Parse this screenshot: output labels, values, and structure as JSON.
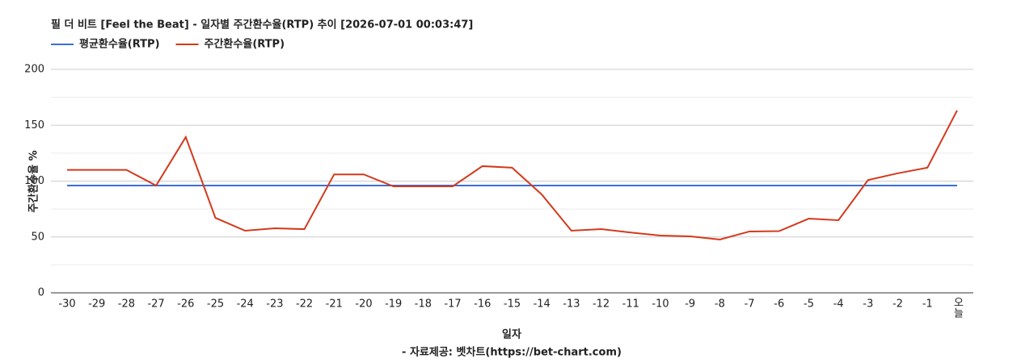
{
  "chart_data": {
    "type": "line",
    "title": "필 더 비트 [Feel the Beat] - 일자별 주간환수율(RTP) 추이 [2026-07-01 00:03:47]",
    "x_label": "일자",
    "y_label": "주간환수율 %",
    "footer": "- 자료제공: 벳차트(https://bet-chart.com)",
    "categories": [
      "-30",
      "-29",
      "-28",
      "-27",
      "-26",
      "-25",
      "-24",
      "-23",
      "-22",
      "-21",
      "-20",
      "-19",
      "-18",
      "-17",
      "-16",
      "-15",
      "-14",
      "-13",
      "-12",
      "-11",
      "-10",
      "-9",
      "-8",
      "-7",
      "-6",
      "-5",
      "-4",
      "-3",
      "-2",
      "-1",
      "오늘"
    ],
    "series": [
      {
        "name": "평균환수율(RTP)",
        "color": "#3b6fd4",
        "values": [
          96,
          96,
          96,
          96,
          96,
          96,
          96,
          96,
          96,
          96,
          96,
          96,
          96,
          96,
          96,
          96,
          96,
          96,
          96,
          96,
          96,
          96,
          96,
          96,
          96,
          96,
          96,
          96,
          96,
          96,
          96
        ]
      },
      {
        "name": "주간환수율(RTP)",
        "color": "#d4391c",
        "values": [
          110,
          110,
          110,
          96,
          139.4,
          67.1,
          55.6,
          57.8,
          57,
          106,
          106,
          95.3,
          95.3,
          95.3,
          113.4,
          112,
          88,
          55.6,
          57,
          54,
          51.3,
          50.5,
          47.7,
          54.9,
          55.2,
          66.4,
          65,
          101,
          107,
          112,
          163.2
        ]
      }
    ],
    "ylim": [
      0,
      200
    ],
    "yticks": [
      0,
      50,
      100,
      150,
      200
    ],
    "grid": true,
    "legend": "top-left"
  }
}
